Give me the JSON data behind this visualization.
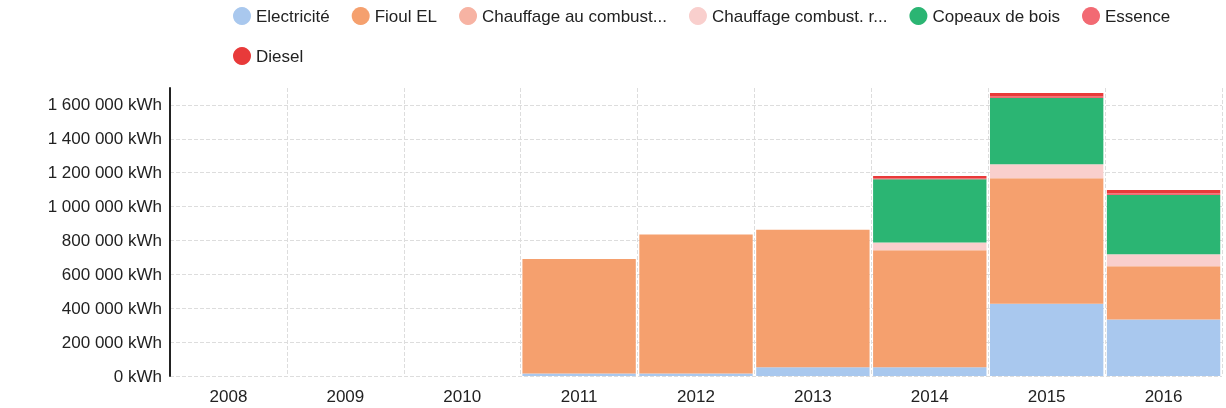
{
  "chart_data": {
    "type": "bar",
    "stacked": true,
    "categories": [
      "2008",
      "2009",
      "2010",
      "2011",
      "2012",
      "2013",
      "2014",
      "2015",
      "2016"
    ],
    "series": [
      {
        "name": "Electricité",
        "color": "#a9c8ee",
        "values": [
          0,
          0,
          0,
          15000,
          15000,
          52000,
          52000,
          426000,
          333000
        ]
      },
      {
        "name": "Fioul EL",
        "color": "#f5a06e",
        "values": [
          0,
          0,
          0,
          675000,
          820000,
          812000,
          690000,
          742000,
          315000
        ]
      },
      {
        "name": "Chauffage au combust...",
        "color": "#f7b3a3",
        "values": [
          0,
          0,
          0,
          0,
          0,
          0,
          0,
          0,
          0
        ]
      },
      {
        "name": "Chauffage combust. r...",
        "color": "#f9cfcd",
        "values": [
          0,
          0,
          0,
          0,
          0,
          0,
          46000,
          82000,
          70000
        ]
      },
      {
        "name": "Copeaux de bois",
        "color": "#2bb573",
        "values": [
          0,
          0,
          0,
          0,
          0,
          0,
          374000,
          391000,
          351000
        ]
      },
      {
        "name": "Essence",
        "color": "#f26a73",
        "values": [
          0,
          0,
          0,
          0,
          0,
          0,
          6000,
          9000,
          9000
        ]
      },
      {
        "name": "Diesel",
        "color": "#e83a3a",
        "values": [
          0,
          0,
          0,
          0,
          0,
          0,
          12000,
          20000,
          20000
        ]
      }
    ],
    "ylim": [
      0,
      1700000
    ],
    "yticks": [
      {
        "value": 0,
        "label": "0 kWh"
      },
      {
        "value": 200000,
        "label": "200 000 kWh"
      },
      {
        "value": 400000,
        "label": "400 000 kWh"
      },
      {
        "value": 600000,
        "label": "600 000 kWh"
      },
      {
        "value": 800000,
        "label": "800 000 kWh"
      },
      {
        "value": 1000000,
        "label": "1 000 000 kWh"
      },
      {
        "value": 1200000,
        "label": "1 200 000 kWh"
      },
      {
        "value": 1400000,
        "label": "1 400 000 kWh"
      },
      {
        "value": 1600000,
        "label": "1 600 000 kWh"
      }
    ],
    "grid": true,
    "legend": "top"
  }
}
